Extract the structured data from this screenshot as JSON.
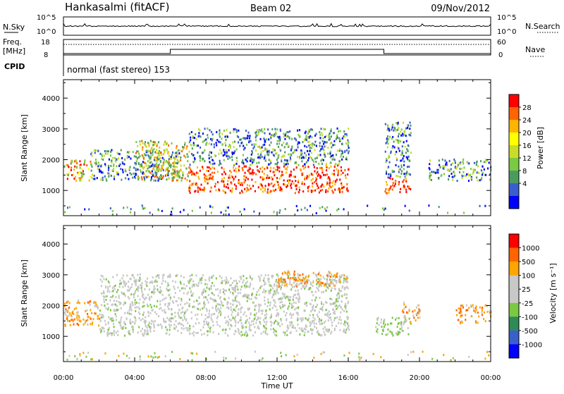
{
  "header": {
    "station": "Hankasalmi (fitACF)",
    "beam": "Beam 02",
    "date": "09/Nov/2012"
  },
  "params": {
    "nsky_label": "N.Sky",
    "nsearch_label": "N.Search",
    "nsky_ticks": [
      "10^5",
      "10^0"
    ],
    "nsearch_ticks": [
      "10^5",
      "10^0"
    ],
    "freq_label_1": "Freq.",
    "freq_label_2": "[MHz]",
    "freq_ticks": [
      "18",
      "8"
    ],
    "nave_ticks": [
      "60",
      "0"
    ],
    "nave_label": "Nave",
    "cpid_label": "CPID",
    "cpid_text": "normal (fast stereo) 153",
    "freq_steps": [
      [
        0,
        0
      ],
      [
        6,
        0
      ],
      [
        6,
        1
      ],
      [
        18,
        1
      ],
      [
        18,
        0
      ],
      [
        24,
        0
      ]
    ]
  },
  "x_axis": {
    "label": "Time UT",
    "ticks": [
      "00:00",
      "04:00",
      "08:00",
      "12:00",
      "16:00",
      "20:00",
      "00:00"
    ],
    "range_hours": [
      0,
      24
    ]
  },
  "panels": [
    {
      "id": "power",
      "ylabel": "Slant Range [km]",
      "yticks": [
        "1000",
        "2000",
        "3000",
        "4000"
      ],
      "ylim": [
        180,
        4600
      ],
      "colorbar_label": "Power [dB]",
      "colorbar_ticks": [
        "28",
        "24",
        "20",
        "16",
        "12",
        "8",
        "4"
      ],
      "colors": [
        "#0000ff",
        "#3a5fcd",
        "#4b9b60",
        "#7ac943",
        "#c8dc28",
        "#ffff00",
        "#ffb400",
        "#ff6400",
        "#ff0000"
      ]
    },
    {
      "id": "velocity",
      "ylabel": "Slant Range [km]",
      "yticks": [
        "1000",
        "2000",
        "3000",
        "4000"
      ],
      "ylim": [
        180,
        4600
      ],
      "colorbar_label": "Velocity [m s⁻¹]",
      "colorbar_ticks": [
        "1000",
        "500",
        "100",
        "25",
        "-25",
        "-100",
        "-500",
        "-1000"
      ],
      "colors": [
        "#0000ff",
        "#3a5fcd",
        "#2e8b57",
        "#7ac943",
        "#c8c8c8",
        "#c8c8c8",
        "#ffa500",
        "#ff6400",
        "#ff0000"
      ]
    }
  ],
  "chart_data": [
    {
      "type": "heatmap",
      "title": "Power [dB]",
      "xlabel": "Time UT",
      "ylabel": "Slant Range [km]",
      "x_range": [
        0,
        24
      ],
      "ylim": [
        180,
        4600
      ],
      "features": [
        {
          "t": [
            0.0,
            1.5
          ],
          "r": [
            1300,
            2000
          ],
          "level": "green-red"
        },
        {
          "t": [
            1.5,
            6.5
          ],
          "r": [
            1300,
            2300
          ],
          "level": "blue-green"
        },
        {
          "t": [
            4.0,
            7.0
          ],
          "r": [
            1300,
            2600
          ],
          "level": "green-orange"
        },
        {
          "t": [
            7.0,
            16.0
          ],
          "r": [
            900,
            1800
          ],
          "level": "red"
        },
        {
          "t": [
            7.0,
            16.0
          ],
          "r": [
            1800,
            3000
          ],
          "level": "blue-green"
        },
        {
          "t": [
            18.0,
            19.5
          ],
          "r": [
            900,
            1400
          ],
          "level": "red"
        },
        {
          "t": [
            18.0,
            19.5
          ],
          "r": [
            1400,
            3200
          ],
          "level": "blue-green"
        },
        {
          "t": [
            20.5,
            24.0
          ],
          "r": [
            1300,
            2000
          ],
          "level": "blue-green"
        }
      ]
    },
    {
      "type": "heatmap",
      "title": "Velocity [m s⁻¹]",
      "xlabel": "Time UT",
      "ylabel": "Slant Range [km]",
      "x_range": [
        0,
        24
      ],
      "ylim": [
        180,
        4600
      ],
      "features": [
        {
          "t": [
            0.0,
            2.0
          ],
          "r": [
            1300,
            2200
          ],
          "level": "orange"
        },
        {
          "t": [
            2.0,
            16.0
          ],
          "r": [
            1000,
            3000
          ],
          "level": "grey"
        },
        {
          "t": [
            12.0,
            16.0
          ],
          "r": [
            2600,
            3100
          ],
          "level": "orange"
        },
        {
          "t": [
            17.5,
            19.5
          ],
          "r": [
            1000,
            1600
          ],
          "level": "green"
        },
        {
          "t": [
            19.0,
            20.0
          ],
          "r": [
            1400,
            2100
          ],
          "level": "orange"
        },
        {
          "t": [
            22.0,
            24.0
          ],
          "r": [
            1400,
            2000
          ],
          "level": "orange"
        }
      ]
    }
  ]
}
